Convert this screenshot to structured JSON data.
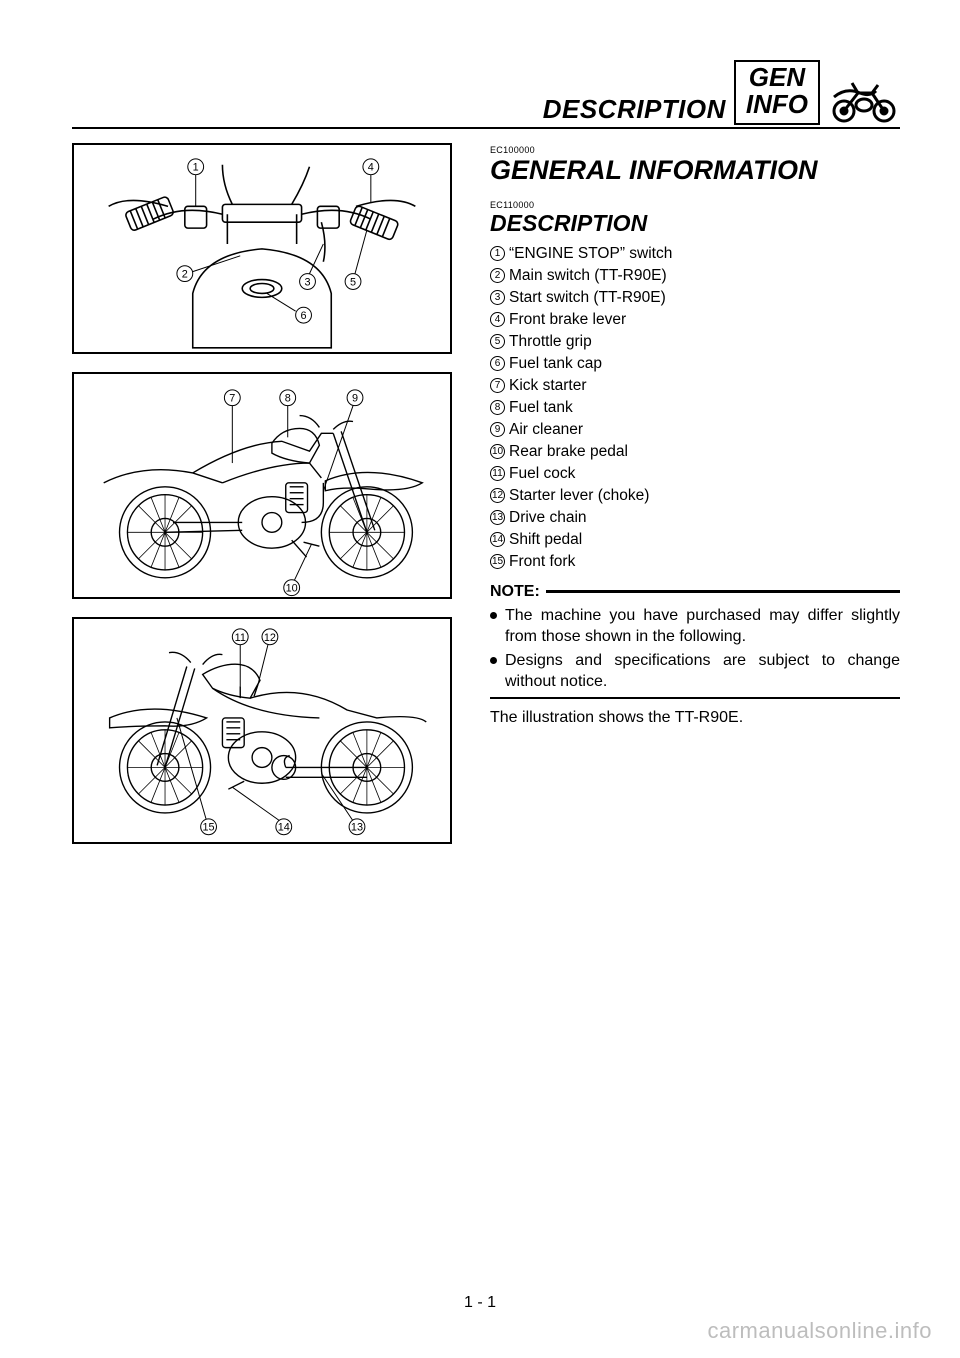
{
  "header": {
    "section_label": "DESCRIPTION",
    "tab_line1": "GEN",
    "tab_line2": "INFO"
  },
  "chapter": {
    "code": "EC100000",
    "title": "GENERAL INFORMATION"
  },
  "section": {
    "code": "EC110000",
    "title": "DESCRIPTION"
  },
  "parts": [
    {
      "n": "1",
      "label": "“ENGINE STOP” switch"
    },
    {
      "n": "2",
      "label": "Main switch (TT-R90E)"
    },
    {
      "n": "3",
      "label": "Start switch (TT-R90E)"
    },
    {
      "n": "4",
      "label": "Front brake lever"
    },
    {
      "n": "5",
      "label": "Throttle grip"
    },
    {
      "n": "6",
      "label": "Fuel tank cap"
    },
    {
      "n": "7",
      "label": "Kick starter"
    },
    {
      "n": "8",
      "label": "Fuel tank"
    },
    {
      "n": "9",
      "label": "Air cleaner"
    },
    {
      "n": "10",
      "label": "Rear brake pedal"
    },
    {
      "n": "11",
      "label": "Fuel cock"
    },
    {
      "n": "12",
      "label": "Starter lever (choke)"
    },
    {
      "n": "13",
      "label": "Drive chain"
    },
    {
      "n": "14",
      "label": "Shift pedal"
    },
    {
      "n": "15",
      "label": "Front fork"
    }
  ],
  "note": {
    "label": "NOTE:",
    "bullets": [
      "The machine you have purchased may differ slightly from those shown in the following.",
      "Designs and specifications are subject to change without notice."
    ]
  },
  "after_note": "The illustration shows the TT-R90E.",
  "figures": {
    "fig1_callouts": [
      "1",
      "2",
      "3",
      "4",
      "5",
      "6"
    ],
    "fig2_callouts": [
      "7",
      "8",
      "9",
      "10"
    ],
    "fig3_callouts": [
      "11",
      "12",
      "13",
      "14",
      "15"
    ]
  },
  "page_num": "1 - 1",
  "watermark": "carmanualsonline.info",
  "colors": {
    "text": "#000000",
    "bg": "#ffffff",
    "watermark": "#bdbdbd"
  }
}
